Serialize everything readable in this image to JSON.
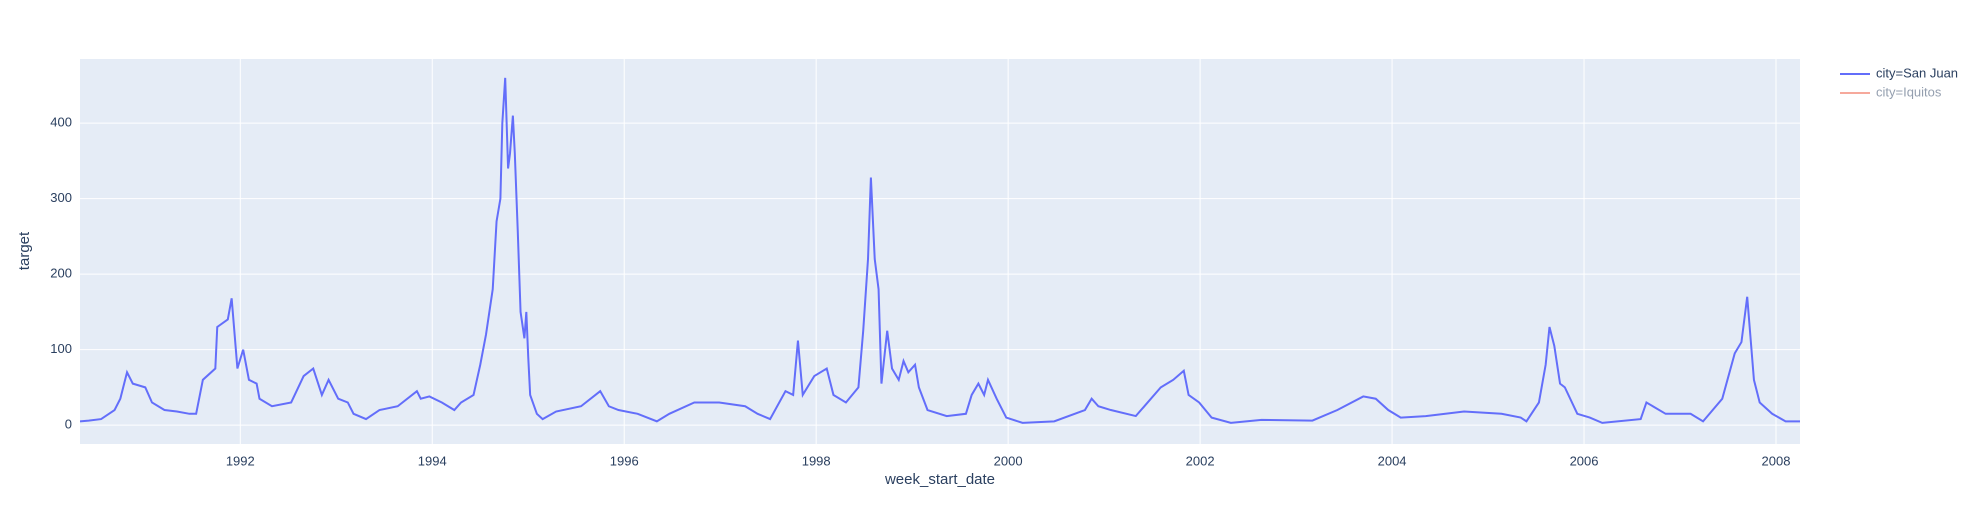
{
  "chart_data": {
    "type": "line",
    "x_label": "week_start_date",
    "y_label": "target",
    "xlim": [
      1990.33,
      2008.25
    ],
    "xticks": [
      1992,
      1994,
      1996,
      1998,
      2000,
      2002,
      2004,
      2006,
      2008
    ],
    "ylim": [
      -25,
      485
    ],
    "yticks": [
      0,
      100,
      200,
      300,
      400
    ],
    "grid": true,
    "legend": "right",
    "background": "#e5ecf6",
    "series": [
      {
        "name": "city=San Juan",
        "color": "#636efa",
        "visible": true,
        "x": [
          1990.33,
          1990.42,
          1990.55,
          1990.69,
          1990.75,
          1990.82,
          1990.88,
          1991.01,
          1991.08,
          1991.21,
          1991.34,
          1991.47,
          1991.54,
          1991.61,
          1991.74,
          1991.76,
          1991.87,
          1991.91,
          1991.97,
          1992.03,
          1992.09,
          1992.17,
          1992.2,
          1992.33,
          1992.53,
          1992.66,
          1992.76,
          1992.85,
          1992.92,
          1993.02,
          1993.12,
          1993.18,
          1993.31,
          1993.45,
          1993.64,
          1993.84,
          1993.88,
          1993.97,
          1994.1,
          1994.23,
          1994.3,
          1994.43,
          1994.5,
          1994.56,
          1994.63,
          1994.67,
          1994.71,
          1994.73,
          1994.76,
          1994.79,
          1994.81,
          1994.84,
          1994.86,
          1994.89,
          1994.92,
          1994.96,
          1994.98,
          1995.0,
          1995.02,
          1995.09,
          1995.15,
          1995.29,
          1995.55,
          1995.75,
          1995.84,
          1995.94,
          1996.14,
          1996.34,
          1996.47,
          1996.73,
          1996.99,
          1997.26,
          1997.39,
          1997.52,
          1997.68,
          1997.76,
          1997.81,
          1997.86,
          1997.98,
          1998.11,
          1998.18,
          1998.31,
          1998.44,
          1998.49,
          1998.54,
          1998.57,
          1998.61,
          1998.65,
          1998.68,
          1998.74,
          1998.79,
          1998.86,
          1998.91,
          1998.96,
          1999.03,
          1999.07,
          1999.16,
          1999.36,
          1999.56,
          1999.62,
          1999.69,
          1999.75,
          1999.79,
          1999.88,
          1999.98,
          2000.15,
          2000.48,
          2000.8,
          2000.87,
          2000.94,
          2001.07,
          2001.33,
          2001.59,
          2001.72,
          2001.83,
          2001.88,
          2001.99,
          2002.12,
          2002.32,
          2002.64,
          2003.17,
          2003.43,
          2003.7,
          2003.83,
          2003.96,
          2004.09,
          2004.35,
          2004.75,
          2005.14,
          2005.34,
          2005.4,
          2005.53,
          2005.6,
          2005.64,
          2005.69,
          2005.75,
          2005.8,
          2005.93,
          2006.06,
          2006.19,
          2006.59,
          2006.65,
          2006.85,
          2007.11,
          2007.24,
          2007.44,
          2007.57,
          2007.64,
          2007.7,
          2007.77,
          2007.83,
          2007.96,
          2008.1,
          2008.25
        ],
        "values": [
          5,
          6,
          8,
          20,
          35,
          70,
          55,
          50,
          30,
          20,
          18,
          15,
          15,
          60,
          75,
          130,
          140,
          168,
          75,
          100,
          60,
          55,
          35,
          25,
          30,
          65,
          75,
          40,
          60,
          35,
          30,
          15,
          8,
          20,
          25,
          45,
          35,
          38,
          30,
          20,
          30,
          40,
          80,
          120,
          180,
          270,
          300,
          400,
          460,
          340,
          360,
          410,
          360,
          260,
          150,
          115,
          150,
          90,
          40,
          15,
          8,
          18,
          25,
          45,
          25,
          20,
          15,
          5,
          15,
          30,
          30,
          25,
          15,
          8,
          45,
          40,
          112,
          40,
          65,
          75,
          40,
          30,
          50,
          125,
          220,
          328,
          220,
          180,
          55,
          125,
          75,
          60,
          85,
          70,
          80,
          50,
          20,
          12,
          15,
          40,
          55,
          40,
          60,
          35,
          10,
          3,
          5,
          20,
          35,
          25,
          20,
          12,
          50,
          60,
          72,
          40,
          30,
          10,
          3,
          7,
          6,
          20,
          38,
          35,
          20,
          10,
          12,
          18,
          15,
          10,
          5,
          30,
          80,
          130,
          105,
          55,
          50,
          15,
          10,
          3,
          8,
          30,
          15,
          15,
          5,
          35,
          95,
          110,
          170,
          60,
          30,
          15,
          5,
          5
        ]
      },
      {
        "name": "city=Iquitos",
        "color": "#EF553B",
        "visible": "legendonly",
        "x": [],
        "values": []
      }
    ]
  }
}
